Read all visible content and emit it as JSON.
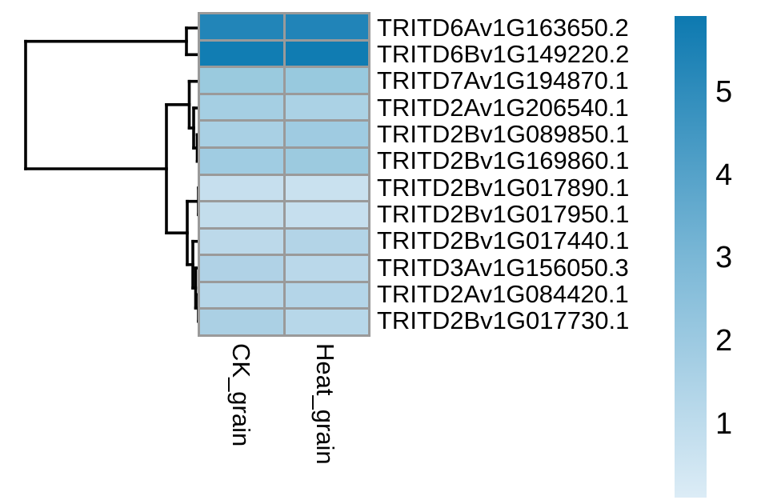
{
  "chart_data": {
    "type": "heatmap",
    "title": "",
    "columns": [
      "CK_grain",
      "Heat_grain"
    ],
    "rows": [
      "TRITD6Av1G163650.2",
      "TRITD6Bv1G149220.2",
      "TRITD7Av1G194870.1",
      "TRITD2Av1G206540.1",
      "TRITD2Bv1G089850.1",
      "TRITD2Bv1G169860.1",
      "TRITD2Bv1G017890.1",
      "TRITD2Bv1G017950.1",
      "TRITD2Bv1G017440.1",
      "TRITD3Av1G156050.3",
      "TRITD2Av1G084420.1",
      "TRITD2Bv1G017730.1"
    ],
    "series": [
      {
        "name": "TRITD6Av1G163650.2",
        "values": [
          5.2,
          5.2
        ]
      },
      {
        "name": "TRITD6Bv1G149220.2",
        "values": [
          5.6,
          5.6
        ]
      },
      {
        "name": "TRITD7Av1G194870.1",
        "values": [
          2.1,
          2.2
        ]
      },
      {
        "name": "TRITD2Av1G206540.1",
        "values": [
          1.8,
          1.6
        ]
      },
      {
        "name": "TRITD2Bv1G089850.1",
        "values": [
          1.7,
          1.9
        ]
      },
      {
        "name": "TRITD2Bv1G169860.1",
        "values": [
          2.0,
          2.1
        ]
      },
      {
        "name": "TRITD2Bv1G017890.1",
        "values": [
          0.6,
          0.6
        ]
      },
      {
        "name": "TRITD2Bv1G017950.1",
        "values": [
          0.8,
          0.7
        ]
      },
      {
        "name": "TRITD2Bv1G017440.1",
        "values": [
          1.0,
          1.3
        ]
      },
      {
        "name": "TRITD3Av1G156050.3",
        "values": [
          1.4,
          1.1
        ]
      },
      {
        "name": "TRITD2Av1G084420.1",
        "values": [
          1.2,
          1.2
        ]
      },
      {
        "name": "TRITD2Bv1G017730.1",
        "values": [
          1.4,
          1.1
        ]
      }
    ],
    "values_estimated_from_colorbar": true,
    "colorbar_ticks": [
      "5",
      "4",
      "3",
      "2",
      "1"
    ],
    "colorbar_range_estimate": [
      0.1,
      5.9
    ],
    "legend_position": "right",
    "row_dendrogram_topology": "((1,2),((3,(4,(5,6))),((7,8),(9,(10,(11,12))))))"
  },
  "heatmap": {
    "grid_color": "#9a9a9a",
    "cell_colors": [
      [
        "#2285b8",
        "#2184b8"
      ],
      [
        "#117db3",
        "#107cb2"
      ],
      [
        "#9acade",
        "#98c9de"
      ],
      [
        "#a5cfe3",
        "#abd2e5"
      ],
      [
        "#a9d0e4",
        "#9fcbe1"
      ],
      [
        "#a0cce2",
        "#9ccadf"
      ],
      [
        "#c6dfee",
        "#c9e1ef"
      ],
      [
        "#c3ddec",
        "#c6dfee"
      ],
      [
        "#bcd9ea",
        "#b3d4e7"
      ],
      [
        "#b0d2e6",
        "#bad8ea"
      ],
      [
        "#b6d6e8",
        "#b4d5e8"
      ],
      [
        "#abd0e4",
        "#b7d7e9"
      ]
    ]
  },
  "dendrogram": {
    "color": "#000000",
    "stroke_width": 3.6,
    "segments": [
      [
        233,
        35,
        250,
        35
      ],
      [
        233,
        68.3,
        250,
        68.3
      ],
      [
        233,
        35,
        233,
        68.3
      ],
      [
        32,
        51.7,
        233,
        51.7
      ],
      [
        32,
        51.7,
        32,
        211
      ],
      [
        32,
        211,
        208,
        211
      ],
      [
        208,
        130.8,
        208,
        291.2
      ],
      [
        208,
        130.8,
        236.5,
        130.8
      ],
      [
        236.5,
        101.7,
        236.5,
        160
      ],
      [
        236.5,
        101.7,
        250,
        101.7
      ],
      [
        236.5,
        160,
        242,
        160
      ],
      [
        242,
        135,
        242,
        185
      ],
      [
        242,
        135,
        250,
        135
      ],
      [
        242,
        185,
        246.5,
        185
      ],
      [
        246.5,
        168.3,
        246.5,
        201.7
      ],
      [
        246.5,
        168.3,
        250,
        168.3
      ],
      [
        246.5,
        201.7,
        250,
        201.7
      ],
      [
        208,
        291.2,
        234,
        291.2
      ],
      [
        234,
        251.7,
        234,
        330.8
      ],
      [
        234,
        251.7,
        248,
        251.7
      ],
      [
        248,
        235,
        248,
        268.3
      ],
      [
        248,
        235,
        250,
        235
      ],
      [
        248,
        268.3,
        250,
        268.3
      ],
      [
        234,
        330.8,
        241,
        330.8
      ],
      [
        241,
        301.7,
        241,
        360
      ],
      [
        241,
        301.7,
        250,
        301.7
      ],
      [
        241,
        360,
        244.5,
        360
      ],
      [
        244.5,
        335,
        244.5,
        385
      ],
      [
        244.5,
        335,
        250,
        335
      ],
      [
        244.5,
        385,
        248,
        385
      ],
      [
        248,
        368.3,
        248,
        401.7
      ],
      [
        248,
        368.3,
        250,
        368.3
      ],
      [
        248,
        401.7,
        250,
        401.7
      ]
    ]
  },
  "colorbar": {
    "gradient": [
      "#0d79b0",
      "#7ab7d6",
      "#dcecf6"
    ],
    "ticks": [
      "5",
      "4",
      "3",
      "2",
      "1"
    ]
  }
}
